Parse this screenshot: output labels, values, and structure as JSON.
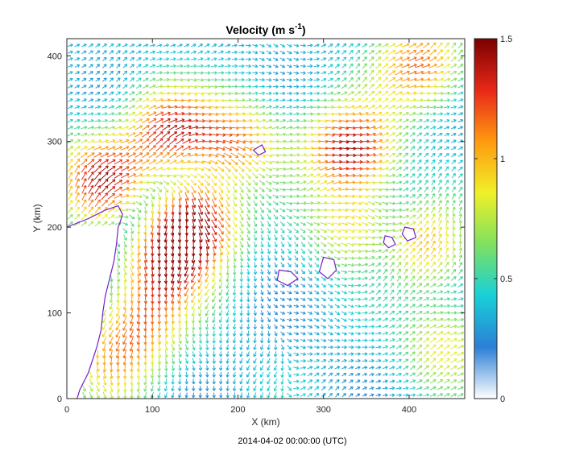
{
  "chart_data": {
    "type": "quiver",
    "title": {
      "main": "Velocity (m s",
      "exponent": "-1",
      "close": ")"
    },
    "xlabel": "X (km)",
    "ylabel": "Y (km)",
    "footer": "2014-04-02 00:00:00  (UTC)",
    "xlim": [
      0,
      465
    ],
    "ylim": [
      0,
      420
    ],
    "xticks": [
      0,
      100,
      200,
      300,
      400
    ],
    "yticks": [
      0,
      100,
      200,
      300,
      400
    ],
    "grid": false,
    "colorbar": {
      "range": [
        0,
        1.5
      ],
      "ticks": [
        0,
        0.5,
        1,
        1.5
      ],
      "tick_labels": [
        "0",
        "0.5",
        "1",
        "1.5"
      ],
      "colormap": [
        "#ffffff",
        "#2b7fd6",
        "#18d0d8",
        "#7fe060",
        "#f0f028",
        "#ff9a10",
        "#e82818",
        "#7a0000"
      ]
    },
    "jets": [
      {
        "x": 40,
        "y": 255,
        "speed": 1.2,
        "direction_deg": 40
      },
      {
        "x": 120,
        "y": 315,
        "speed": 1.1,
        "direction_deg": 20
      },
      {
        "x": 200,
        "y": 300,
        "speed": 0.9,
        "direction_deg": -10
      },
      {
        "x": 330,
        "y": 292,
        "speed": 1.25,
        "direction_deg": 15
      },
      {
        "x": 410,
        "y": 390,
        "speed": 1.0,
        "direction_deg": 30
      },
      {
        "x": 150,
        "y": 210,
        "speed": 1.2,
        "direction_deg": -80
      },
      {
        "x": 120,
        "y": 160,
        "speed": 1.05,
        "direction_deg": -100
      },
      {
        "x": 90,
        "y": 90,
        "speed": 0.75,
        "direction_deg": -95
      },
      {
        "x": 50,
        "y": 40,
        "speed": 0.7,
        "direction_deg": -90
      },
      {
        "x": 440,
        "y": 60,
        "speed": 0.7,
        "direction_deg": 20
      },
      {
        "x": 420,
        "y": 180,
        "speed": 0.8,
        "direction_deg": 60
      },
      {
        "x": 330,
        "y": 200,
        "speed": 0.7,
        "direction_deg": -30
      }
    ],
    "coastline": {
      "mainland": [
        [
          0,
          200
        ],
        [
          25,
          210
        ],
        [
          45,
          220
        ],
        [
          60,
          225
        ],
        [
          65,
          215
        ],
        [
          62,
          205
        ],
        [
          60,
          200
        ],
        [
          58,
          180
        ],
        [
          55,
          160
        ],
        [
          50,
          140
        ],
        [
          45,
          120
        ],
        [
          42,
          100
        ],
        [
          40,
          80
        ],
        [
          35,
          60
        ],
        [
          25,
          30
        ],
        [
          15,
          10
        ],
        [
          12,
          0
        ]
      ],
      "islands": [
        [
          [
            248,
            150
          ],
          [
            262,
            148
          ],
          [
            270,
            140
          ],
          [
            258,
            132
          ],
          [
            246,
            138
          ],
          [
            248,
            150
          ]
        ],
        [
          [
            300,
            165
          ],
          [
            312,
            162
          ],
          [
            315,
            150
          ],
          [
            305,
            140
          ],
          [
            295,
            148
          ],
          [
            300,
            165
          ]
        ],
        [
          [
            372,
            190
          ],
          [
            380,
            188
          ],
          [
            384,
            180
          ],
          [
            376,
            176
          ],
          [
            370,
            182
          ],
          [
            372,
            190
          ]
        ],
        [
          [
            395,
            200
          ],
          [
            405,
            198
          ],
          [
            408,
            188
          ],
          [
            398,
            184
          ],
          [
            392,
            192
          ],
          [
            395,
            200
          ]
        ],
        [
          [
            218,
            290
          ],
          [
            228,
            296
          ],
          [
            232,
            288
          ],
          [
            224,
            284
          ],
          [
            218,
            290
          ]
        ]
      ]
    }
  }
}
